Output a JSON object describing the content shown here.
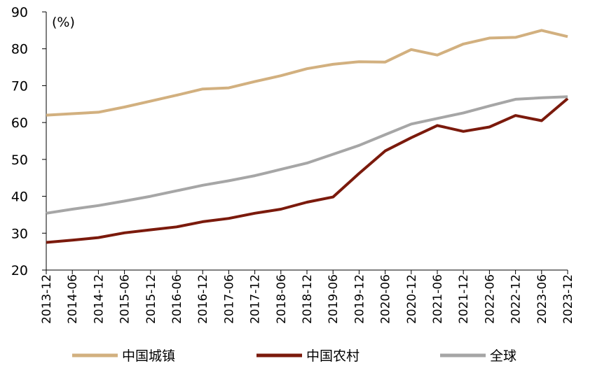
{
  "chart_data": {
    "type": "line",
    "unit_label": "(%)",
    "ylim": [
      20,
      90
    ],
    "yticks": [
      20,
      30,
      40,
      50,
      60,
      70,
      80,
      90
    ],
    "categories": [
      "2013-12",
      "2014-06",
      "2014-12",
      "2015-06",
      "2015-12",
      "2016-06",
      "2016-12",
      "2017-06",
      "2017-12",
      "2018-06",
      "2018-12",
      "2019-06",
      "2019-12",
      "2020-06",
      "2020-12",
      "2021-06",
      "2021-12",
      "2022-06",
      "2022-12",
      "2023-06",
      "2023-12"
    ],
    "series": [
      {
        "name": "中国城镇",
        "color": "#d2b07f",
        "values": [
          62.0,
          62.4,
          62.8,
          64.2,
          65.8,
          67.4,
          69.1,
          69.4,
          71.1,
          72.7,
          74.6,
          75.8,
          76.5,
          76.4,
          79.8,
          78.3,
          81.3,
          82.9,
          83.1,
          85.0,
          83.3
        ]
      },
      {
        "name": "中国农村",
        "color": "#7b1a0c",
        "values": [
          27.5,
          28.1,
          28.8,
          30.1,
          30.9,
          31.7,
          33.1,
          34.0,
          35.4,
          36.5,
          38.4,
          39.8,
          46.2,
          52.3,
          55.9,
          59.2,
          57.6,
          58.8,
          61.9,
          60.5,
          66.5
        ]
      },
      {
        "name": "全球",
        "color": "#a6a6a6",
        "values": [
          35.4,
          36.5,
          37.5,
          38.7,
          40.0,
          41.5,
          43.0,
          44.2,
          45.6,
          47.3,
          49.0,
          51.4,
          53.8,
          56.7,
          59.6,
          61.1,
          62.6,
          64.5,
          66.3,
          66.7,
          67.0
        ]
      }
    ],
    "legend_position": "bottom",
    "grid": false
  }
}
